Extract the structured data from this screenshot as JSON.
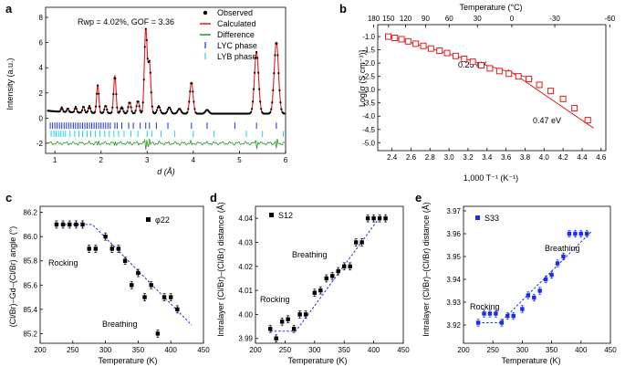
{
  "chart_data": [
    {
      "id": "a",
      "type": "line",
      "panel_label": "a",
      "xlabel": "d (Å)",
      "ylabel": "Intensity (a.u.)",
      "xlim": [
        0.8,
        6.0
      ],
      "ylim": [
        -2.8,
        8.8
      ],
      "xticks": [
        1,
        2,
        3,
        4,
        5,
        6
      ],
      "yticks": [
        -2,
        0,
        2,
        4,
        6,
        8
      ],
      "annotation": "Rwp = 4.02%, GOF = 3.36",
      "legend": {
        "observed": "Observed",
        "calculated": "Calculated",
        "difference": "Difference",
        "lyc": "LYC phase",
        "lyb": "LYB phase"
      },
      "colors": {
        "observed": "#000000",
        "calculated": "#e41a1c",
        "difference": "#1f9a1f",
        "lyc": "#1a2ee8",
        "lyb": "#19d3e0"
      },
      "peaks": [
        {
          "d": 1.15,
          "h": 0.35
        },
        {
          "d": 1.28,
          "h": 0.3
        },
        {
          "d": 1.45,
          "h": 0.45
        },
        {
          "d": 1.62,
          "h": 0.5
        },
        {
          "d": 1.75,
          "h": 0.55
        },
        {
          "d": 1.93,
          "h": 2.2
        },
        {
          "d": 2.1,
          "h": 0.6
        },
        {
          "d": 2.3,
          "h": 3.0
        },
        {
          "d": 2.45,
          "h": 0.5
        },
        {
          "d": 2.62,
          "h": 0.9
        },
        {
          "d": 2.8,
          "h": 1.0
        },
        {
          "d": 2.97,
          "h": 6.6
        },
        {
          "d": 3.05,
          "h": 4.0
        },
        {
          "d": 3.25,
          "h": 0.6
        },
        {
          "d": 3.48,
          "h": 0.5
        },
        {
          "d": 3.7,
          "h": 0.4
        },
        {
          "d": 3.96,
          "h": 2.5
        },
        {
          "d": 4.3,
          "h": 0.3
        },
        {
          "d": 5.37,
          "h": 4.9
        },
        {
          "d": 5.8,
          "h": 5.7
        }
      ],
      "lyc_ticks": [
        0.9,
        0.95,
        1.0,
        1.05,
        1.1,
        1.15,
        1.2,
        1.25,
        1.3,
        1.35,
        1.4,
        1.45,
        1.5,
        1.55,
        1.6,
        1.65,
        1.7,
        1.75,
        1.8,
        1.85,
        1.9,
        1.95,
        2.0,
        2.05,
        2.1,
        2.15,
        2.2,
        2.3,
        2.35,
        2.45,
        2.6,
        2.7,
        2.85,
        2.97,
        3.05,
        3.2,
        3.45,
        3.96,
        4.3,
        4.9,
        5.37,
        5.8
      ],
      "lyb_ticks": [
        0.92,
        0.98,
        1.03,
        1.08,
        1.13,
        1.18,
        1.23,
        1.33,
        1.43,
        1.52,
        1.6,
        1.7,
        1.78,
        1.88,
        1.98,
        2.08,
        2.18,
        2.28,
        2.38,
        2.5,
        2.65,
        2.8,
        3.0,
        3.1,
        3.3,
        3.6,
        4.0,
        4.45,
        5.15,
        5.5,
        5.95
      ]
    },
    {
      "id": "b",
      "type": "scatter",
      "panel_label": "b",
      "xlabel": "1,000 T⁻¹ (K⁻¹)",
      "ylabel": "Log[σ (S cm⁻¹)]",
      "top_xlabel": "Temperature (°C)",
      "xlim": [
        2.25,
        4.65
      ],
      "ylim": [
        -5.3,
        -0.55
      ],
      "xticks": [
        2.4,
        2.6,
        2.8,
        3.0,
        3.2,
        3.4,
        3.6,
        3.8,
        4.0,
        4.2,
        4.4,
        4.6
      ],
      "yticks": [
        -5.0,
        -4.5,
        -4.0,
        -3.5,
        -3.0,
        -2.5,
        -2.0,
        -1.5,
        -1.0
      ],
      "top_ticks": [
        180,
        150,
        120,
        90,
        60,
        30,
        0,
        -30,
        -60
      ],
      "labels": [
        "0.25 eV",
        "0.47 eV"
      ],
      "color": "#e41a1c",
      "x": [
        2.36,
        2.43,
        2.5,
        2.57,
        2.65,
        2.73,
        2.81,
        2.9,
        2.98,
        3.07,
        3.16,
        3.25,
        3.34,
        3.43,
        3.53,
        3.63,
        3.73,
        3.84,
        3.95,
        4.07,
        4.2,
        4.32,
        4.46
      ],
      "y": [
        -1.0,
        -1.05,
        -1.1,
        -1.18,
        -1.27,
        -1.35,
        -1.45,
        -1.53,
        -1.62,
        -1.73,
        -1.84,
        -1.95,
        -2.08,
        -2.2,
        -2.3,
        -2.4,
        -2.5,
        -2.6,
        -2.82,
        -3.05,
        -3.35,
        -3.7,
        -4.15
      ],
      "fit1": {
        "x": [
          2.36,
          3.88
        ],
        "y": [
          -0.97,
          -2.6
        ]
      },
      "fit2": {
        "x": [
          3.62,
          4.52
        ],
        "y": [
          -2.25,
          -4.45
        ]
      }
    },
    {
      "id": "c",
      "type": "scatter",
      "panel_label": "c",
      "xlabel": "Temperature (K)",
      "ylabel": "(Cl/Br)–Gd–(Cl/Br) angle (°)",
      "legend": "φ22",
      "xlim": [
        200,
        450
      ],
      "ylim": [
        85.12,
        86.25
      ],
      "xticks": [
        200,
        250,
        300,
        350,
        400,
        450
      ],
      "yticks": [
        85.2,
        85.4,
        85.6,
        85.8,
        86.0,
        86.2
      ],
      "labels": [
        "Rocking",
        "Breathing"
      ],
      "x": [
        225,
        235,
        245,
        255,
        265,
        275,
        285,
        300,
        310,
        320,
        330,
        340,
        350,
        360,
        370,
        380,
        390,
        400,
        410
      ],
      "y": [
        86.1,
        86.1,
        86.1,
        86.1,
        86.1,
        85.9,
        85.9,
        86.0,
        85.9,
        85.9,
        85.8,
        85.6,
        85.7,
        85.5,
        85.6,
        85.2,
        85.5,
        85.5,
        85.4
      ],
      "err": 0.03,
      "fit": {
        "x": [
          225,
          280,
          432
        ],
        "y": [
          86.1,
          86.1,
          85.27
        ]
      }
    },
    {
      "id": "d",
      "type": "scatter",
      "panel_label": "d",
      "xlabel": "Temperature (K)",
      "ylabel": "Intralayer (Cl/Br)–(Cl/Br) distance (Å)",
      "legend": "S12",
      "xlim": [
        200,
        450
      ],
      "ylim": [
        3.988,
        4.045
      ],
      "xticks": [
        200,
        250,
        300,
        350,
        400,
        450
      ],
      "yticks": [
        3.99,
        4.0,
        4.01,
        4.02,
        4.03,
        4.04
      ],
      "labels": [
        "Rocking",
        "Breathing"
      ],
      "x": [
        225,
        235,
        245,
        255,
        265,
        275,
        285,
        300,
        310,
        320,
        330,
        340,
        350,
        360,
        370,
        380,
        390,
        400,
        410,
        420
      ],
      "y": [
        3.994,
        3.99,
        3.997,
        3.998,
        3.994,
        4.0,
        4.0,
        4.009,
        4.01,
        4.015,
        4.016,
        4.018,
        4.02,
        4.02,
        4.03,
        4.03,
        4.04,
        4.04,
        4.04,
        4.04
      ],
      "err": 0.0015,
      "fit": {
        "x": [
          225,
          268,
          412
        ],
        "y": [
          3.993,
          3.993,
          4.041
        ]
      }
    },
    {
      "id": "e",
      "type": "scatter",
      "panel_label": "e",
      "xlabel": "Temperature (K)",
      "ylabel": "Intralayer (Cl/Br)–(Cl/Br) distance (Å)",
      "legend": "S33",
      "xlim": [
        200,
        450
      ],
      "ylim": [
        3.912,
        3.972
      ],
      "xticks": [
        200,
        250,
        300,
        350,
        400,
        450
      ],
      "yticks": [
        3.92,
        3.93,
        3.94,
        3.95,
        3.96,
        3.97
      ],
      "labels": [
        "Rocking",
        "Breathing"
      ],
      "color": "#1a2ee8",
      "x": [
        225,
        235,
        245,
        255,
        265,
        275,
        285,
        300,
        310,
        320,
        330,
        340,
        350,
        360,
        370,
        380,
        390,
        400,
        410
      ],
      "y": [
        3.921,
        3.925,
        3.925,
        3.925,
        3.921,
        3.924,
        3.924,
        3.927,
        3.933,
        3.932,
        3.935,
        3.94,
        3.942,
        3.947,
        3.95,
        3.96,
        3.96,
        3.96,
        3.96
      ],
      "err": 0.0015,
      "fit": {
        "x": [
          225,
          262,
          418
        ],
        "y": [
          3.921,
          3.921,
          3.961
        ]
      }
    }
  ]
}
